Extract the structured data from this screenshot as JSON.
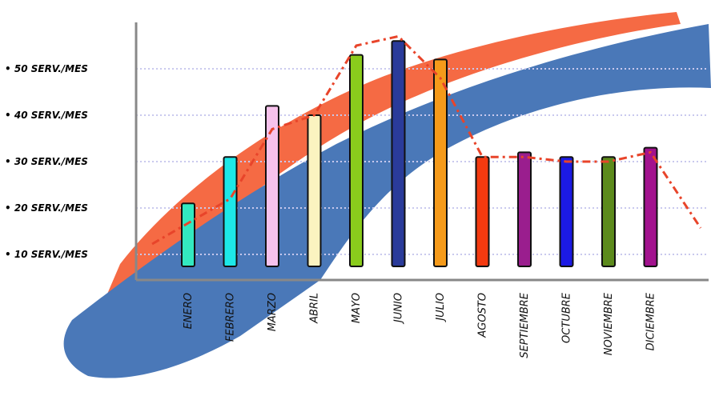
{
  "chart_data": {
    "type": "bar",
    "title": "",
    "xlabel": "",
    "ylabel": "",
    "categories": [
      "ENERO",
      "FEBRERO",
      "MARZO",
      "ABRIL",
      "MAYO",
      "JUNIO",
      "JULIO",
      "AGOSTO",
      "SEPTIEMBRE",
      "OCTUBRE",
      "NOVIEMBRE",
      "DICIEMBRE"
    ],
    "values": [
      21,
      31,
      42,
      40,
      53,
      56,
      52,
      31,
      32,
      31,
      31,
      33
    ],
    "yticks": [
      {
        "value": 10,
        "label": "• 10 SERV./MES"
      },
      {
        "value": 20,
        "label": "• 20 SERV./MES"
      },
      {
        "value": 30,
        "label": "• 30 SERV./MES"
      },
      {
        "value": 40,
        "label": "• 40 SERV./MES"
      },
      {
        "value": 50,
        "label": "• 50 SERV./MES"
      }
    ],
    "ylim": [
      5,
      58
    ],
    "grid": true,
    "legend": "none",
    "trend_line": {
      "color": "#e8442a",
      "style": "dash-dot",
      "values": [
        12,
        22,
        37,
        40,
        55,
        57,
        48,
        31,
        31,
        30,
        30,
        32,
        20
      ]
    },
    "bar_colors": [
      "#33e8c0",
      "#1de8e8",
      "#f7c2ec",
      "#fbf3c0",
      "#8acc1c",
      "#2a3b9a",
      "#f59a1a",
      "#f43a10",
      "#9a1e8e",
      "#1c1ae4",
      "#5c8a1c",
      "#a2128e"
    ],
    "backdrop_colors": {
      "orange": "#f56a44",
      "blue": "#4a78b8"
    }
  }
}
